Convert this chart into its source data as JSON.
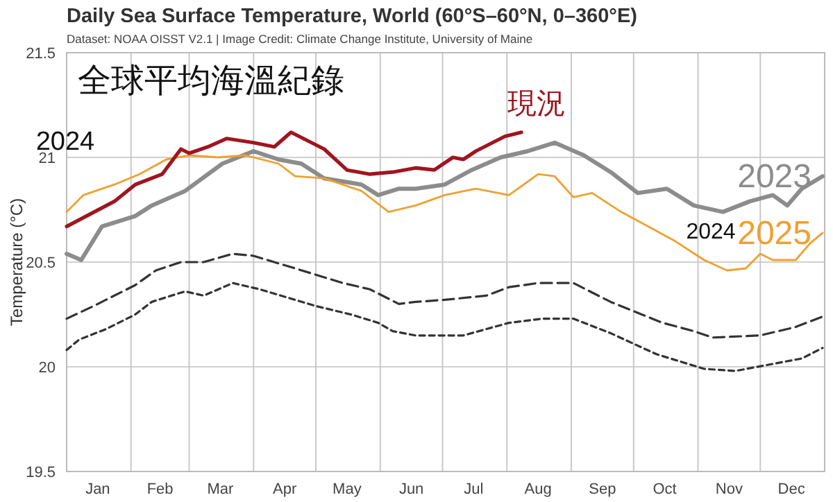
{
  "chart_data": {
    "type": "line",
    "title": "Daily Sea Surface Temperature, World (60°S–60°N, 0–360°E)",
    "subtitle": "Dataset: NOAA OISST V2.1 | Image Credit: Climate Change Institute, University of Maine",
    "ylabel": "Temperature (°C)",
    "annotations": [
      "全球平均海溫紀錄",
      "2024",
      "2024"
    ],
    "xlim": [
      "--01-01",
      "--12-31"
    ],
    "ylim": [
      19.5,
      21.5
    ],
    "yticks": [
      19.5,
      20,
      20.5,
      21,
      21.5
    ],
    "xticks": [
      {
        "value": "--01-01",
        "label": null
      },
      {
        "value": "--01-16",
        "label": "Jan"
      },
      {
        "value": "--02-01",
        "label": null
      },
      {
        "value": "--02-15",
        "label": "Feb"
      },
      {
        "value": "--03-01",
        "label": null
      },
      {
        "value": "--03-16",
        "label": "Mar"
      },
      {
        "value": "--04-01",
        "label": null
      },
      {
        "value": "--04-16",
        "label": "Apr"
      },
      {
        "value": "--05-01",
        "label": null
      },
      {
        "value": "--05-16",
        "label": "May"
      },
      {
        "value": "--06-01",
        "label": null
      },
      {
        "value": "--06-16",
        "label": "Jun"
      },
      {
        "value": "--07-01",
        "label": null
      },
      {
        "value": "--07-16",
        "label": "Jul"
      },
      {
        "value": "--08-01",
        "label": null
      },
      {
        "value": "--08-16",
        "label": "Aug"
      },
      {
        "value": "--09-01",
        "label": null
      },
      {
        "value": "--09-16",
        "label": "Sep"
      },
      {
        "value": "--10-01",
        "label": null
      },
      {
        "value": "--10-16",
        "label": "Oct"
      },
      {
        "value": "--11-01",
        "label": null
      },
      {
        "value": "--11-16",
        "label": "Nov"
      },
      {
        "value": "--12-01",
        "label": null
      },
      {
        "value": "--12-16",
        "label": "Dec"
      }
    ],
    "grid": true,
    "legend": false,
    "marker": "none",
    "series": [
      {
        "color": "#333333",
        "line_style": "dashed",
        "x": [
          "--01-01",
          "--01-14",
          "--02-03",
          "--02-13",
          "--02-25",
          "--03-08",
          "--03-22",
          "--04-01",
          "--04-21",
          "--05-14",
          "--05-27",
          "--06-10",
          "--06-18",
          "--07-02",
          "--07-22",
          "--08-02",
          "--08-16",
          "--09-02",
          "--09-20",
          "--10-15",
          "--10-30",
          "--11-08",
          "--12-01",
          "--12-18",
          "--12-31"
        ],
        "values": [
          20.23,
          20.29,
          20.39,
          20.46,
          20.5,
          20.5,
          20.54,
          20.53,
          20.47,
          20.4,
          20.37,
          20.3,
          20.31,
          20.32,
          20.34,
          20.38,
          20.4,
          20.4,
          20.31,
          20.21,
          20.17,
          20.14,
          20.15,
          20.19,
          20.24
        ]
      },
      {
        "color": "#333333",
        "line_style": "dashed",
        "x": [
          "--01-01",
          "--01-07",
          "--01-20",
          "--02-03",
          "--02-11",
          "--02-27",
          "--03-08",
          "--03-22",
          "--04-04",
          "--05-01",
          "--05-18",
          "--05-31",
          "--06-07",
          "--06-18",
          "--07-11",
          "--08-02",
          "--08-18",
          "--09-02",
          "--09-20",
          "--10-12",
          "--11-04",
          "--11-19",
          "--12-05",
          "--12-21",
          "--12-31"
        ],
        "values": [
          20.08,
          20.13,
          20.18,
          20.25,
          20.31,
          20.36,
          20.34,
          20.4,
          20.37,
          20.29,
          20.25,
          20.21,
          20.17,
          20.15,
          20.15,
          20.21,
          20.23,
          20.23,
          20.16,
          20.06,
          19.99,
          19.98,
          20.01,
          20.04,
          20.09
        ]
      },
      {
        "name": "2023",
        "color": "#8c8c8c",
        "x": [
          "--01-01",
          "--01-08",
          "--01-18",
          "--02-03",
          "--02-11",
          "--02-27",
          "--03-17",
          "--04-01",
          "--04-13",
          "--04-24",
          "--05-05",
          "--05-23",
          "--05-31",
          "--06-10",
          "--06-18",
          "--07-02",
          "--07-15",
          "--07-29",
          "--08-11",
          "--08-24",
          "--09-07",
          "--09-20",
          "--10-03",
          "--10-17",
          "--10-30",
          "--11-13",
          "--11-26",
          "--12-07",
          "--12-14",
          "--12-21",
          "--12-31"
        ],
        "values": [
          20.54,
          20.51,
          20.67,
          20.72,
          20.77,
          20.84,
          20.97,
          21.03,
          20.99,
          20.97,
          20.9,
          20.87,
          20.82,
          20.85,
          20.85,
          20.87,
          20.94,
          21.0,
          21.03,
          21.07,
          21.01,
          20.93,
          20.83,
          20.85,
          20.77,
          20.74,
          20.79,
          20.82,
          20.77,
          20.85,
          20.91
        ]
      },
      {
        "name": "2025",
        "color": "#f0a030",
        "x": [
          "--01-01",
          "--01-09",
          "--01-24",
          "--02-05",
          "--02-18",
          "--03-01",
          "--03-15",
          "--03-28",
          "--04-13",
          "--04-21",
          "--05-05",
          "--05-23",
          "--06-05",
          "--06-18",
          "--07-02",
          "--07-17",
          "--08-02",
          "--08-16",
          "--08-24",
          "--09-02",
          "--09-11",
          "--09-25",
          "--10-08",
          "--10-21",
          "--11-04",
          "--11-15",
          "--11-24",
          "--12-01",
          "--12-07",
          "--12-18",
          "--12-25",
          "--12-31"
        ],
        "values": [
          20.74,
          20.82,
          20.87,
          20.92,
          20.99,
          21.01,
          21.0,
          21.01,
          20.97,
          20.91,
          20.9,
          20.84,
          20.74,
          20.77,
          20.82,
          20.85,
          20.82,
          20.92,
          20.91,
          20.81,
          20.83,
          20.74,
          20.67,
          20.6,
          20.51,
          20.46,
          20.47,
          20.54,
          20.51,
          20.51,
          20.59,
          20.64
        ]
      },
      {
        "name": "現況",
        "color": "#a0151f",
        "x": [
          "--01-01",
          "--01-24",
          "--02-03",
          "--02-16",
          "--02-25",
          "--03-01",
          "--03-10",
          "--03-19",
          "--04-01",
          "--04-11",
          "--04-19",
          "--05-05",
          "--05-16",
          "--05-27",
          "--06-07",
          "--06-18",
          "--06-27",
          "--07-06",
          "--07-11",
          "--07-17",
          "--07-31",
          "--08-08"
        ],
        "values": [
          20.67,
          20.79,
          20.87,
          20.92,
          21.04,
          21.02,
          21.05,
          21.09,
          21.07,
          21.05,
          21.12,
          21.04,
          20.94,
          20.92,
          20.93,
          20.95,
          20.94,
          21.0,
          20.99,
          21.03,
          21.1,
          21.12
        ]
      }
    ]
  }
}
